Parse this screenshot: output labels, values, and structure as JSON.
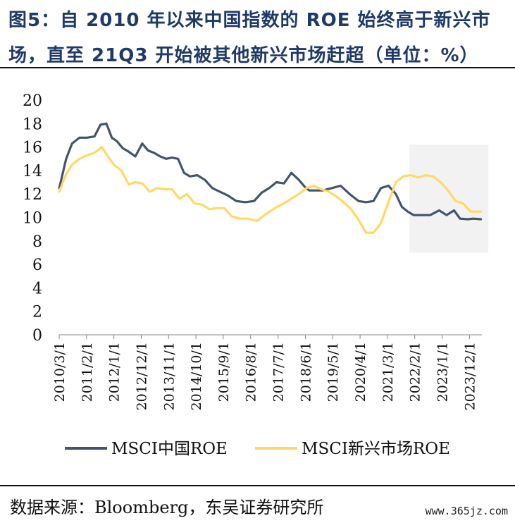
{
  "figure": {
    "title_line1": "图5：自 2010 年以来中国指数的 ROE 始终高于新兴市",
    "title_line2": "场，直至 21Q3 开始被其他新兴市场赶超（单位：%）",
    "source": "数据来源：Bloomberg，东吴证券研究所",
    "watermark": "www.365jz.com"
  },
  "colors": {
    "china": "#44546a",
    "em": "#ffd966",
    "highlight": "#f2f2f2",
    "title": "#1f3a66",
    "axis": "#888888"
  },
  "chart_data": {
    "type": "line",
    "title": "自2010年以来中国指数的ROE始终高于新兴市场，直至21Q3开始被其他新兴市场赶超",
    "xlabel": "",
    "ylabel": "%",
    "ylim": [
      0,
      20
    ],
    "yticks": [
      0,
      2,
      4,
      6,
      8,
      10,
      12,
      14,
      16,
      18,
      20
    ],
    "x_range": [
      2010.167,
      2024.333
    ],
    "xtick_labels": [
      "2010/3/1",
      "2011/2/1",
      "2012/1/1",
      "2012/12/1",
      "2013/11/1",
      "2014/10/1",
      "2015/9/1",
      "2016/8/1",
      "2017/7/1",
      "2018/6/1",
      "2019/5/1",
      "2020/4/1",
      "2021/3/1",
      "2022/2/1",
      "2023/1/1",
      "2023/12/1"
    ],
    "xtick_positions": [
      2010.167,
      2011.083,
      2012.0,
      2012.917,
      2013.833,
      2014.75,
      2015.667,
      2016.583,
      2017.5,
      2018.417,
      2019.333,
      2020.25,
      2021.167,
      2022.083,
      2023.0,
      2023.917
    ],
    "highlight_region": {
      "x_start": 2021.9,
      "x_end": 2024.55,
      "y_start": 7.0,
      "y_end": 16.2
    },
    "legend": [
      "MSCI中国ROE",
      "MSCI新兴市场ROE"
    ],
    "legend_position": "bottom",
    "series": [
      {
        "name": "MSCI中国ROE",
        "color": "#44546a",
        "x": [
          2010.17,
          2010.4,
          2010.6,
          2010.85,
          2011.1,
          2011.35,
          2011.55,
          2011.75,
          2011.93,
          2012.1,
          2012.3,
          2012.5,
          2012.72,
          2012.95,
          2013.15,
          2013.35,
          2013.55,
          2013.75,
          2013.95,
          2014.15,
          2014.35,
          2014.55,
          2014.8,
          2015.05,
          2015.3,
          2015.55,
          2015.8,
          2016.1,
          2016.4,
          2016.7,
          2016.95,
          2017.2,
          2017.45,
          2017.7,
          2017.95,
          2018.2,
          2018.4,
          2018.55,
          2018.75,
          2019.0,
          2019.3,
          2019.6,
          2019.9,
          2020.2,
          2020.45,
          2020.7,
          2020.95,
          2021.2,
          2021.45,
          2021.65,
          2021.85,
          2022.05,
          2022.3,
          2022.6,
          2022.9,
          2023.15,
          2023.4,
          2023.6,
          2023.85,
          2024.05,
          2024.3
        ],
        "values": [
          12.5,
          15.0,
          16.3,
          16.8,
          16.8,
          16.9,
          17.9,
          18.0,
          16.8,
          16.5,
          15.9,
          15.6,
          15.2,
          16.3,
          15.7,
          15.5,
          15.2,
          15.0,
          15.1,
          15.0,
          13.8,
          13.5,
          13.6,
          13.2,
          12.5,
          12.2,
          11.9,
          11.4,
          11.3,
          11.4,
          12.1,
          12.5,
          13.0,
          12.9,
          13.8,
          13.2,
          12.6,
          12.3,
          12.3,
          12.3,
          12.5,
          12.7,
          12.0,
          11.4,
          11.3,
          11.4,
          12.5,
          12.7,
          12.0,
          10.9,
          10.5,
          10.2,
          10.2,
          10.2,
          10.6,
          10.2,
          10.6,
          9.9,
          9.85,
          9.9,
          9.85
        ]
      },
      {
        "name": "MSCI新兴市场ROE",
        "color": "#ffd966",
        "x": [
          2010.17,
          2010.4,
          2010.6,
          2010.85,
          2011.1,
          2011.35,
          2011.6,
          2011.8,
          2012.0,
          2012.25,
          2012.5,
          2012.72,
          2012.95,
          2013.2,
          2013.45,
          2013.7,
          2013.95,
          2014.2,
          2014.45,
          2014.7,
          2014.95,
          2015.2,
          2015.45,
          2015.7,
          2015.95,
          2016.2,
          2016.5,
          2016.8,
          2017.1,
          2017.4,
          2017.7,
          2017.95,
          2018.2,
          2018.45,
          2018.7,
          2018.95,
          2019.2,
          2019.45,
          2019.7,
          2019.95,
          2020.2,
          2020.45,
          2020.7,
          2020.95,
          2021.2,
          2021.45,
          2021.7,
          2021.95,
          2022.2,
          2022.45,
          2022.7,
          2022.95,
          2023.2,
          2023.45,
          2023.7,
          2023.95,
          2024.15,
          2024.3
        ],
        "values": [
          12.2,
          13.7,
          14.5,
          15.0,
          15.3,
          15.5,
          16.0,
          15.2,
          14.5,
          14.0,
          12.8,
          13.0,
          12.9,
          12.2,
          12.5,
          12.4,
          12.4,
          11.6,
          12.0,
          11.2,
          11.1,
          10.7,
          10.8,
          10.8,
          10.1,
          9.9,
          9.9,
          9.7,
          10.3,
          10.8,
          11.2,
          11.6,
          12.0,
          12.5,
          12.7,
          12.4,
          12.2,
          11.8,
          11.3,
          10.7,
          9.8,
          8.7,
          8.7,
          9.5,
          11.3,
          13.0,
          13.5,
          13.6,
          13.4,
          13.6,
          13.5,
          13.0,
          12.3,
          11.4,
          11.2,
          10.5,
          10.5,
          10.5
        ]
      }
    ]
  }
}
